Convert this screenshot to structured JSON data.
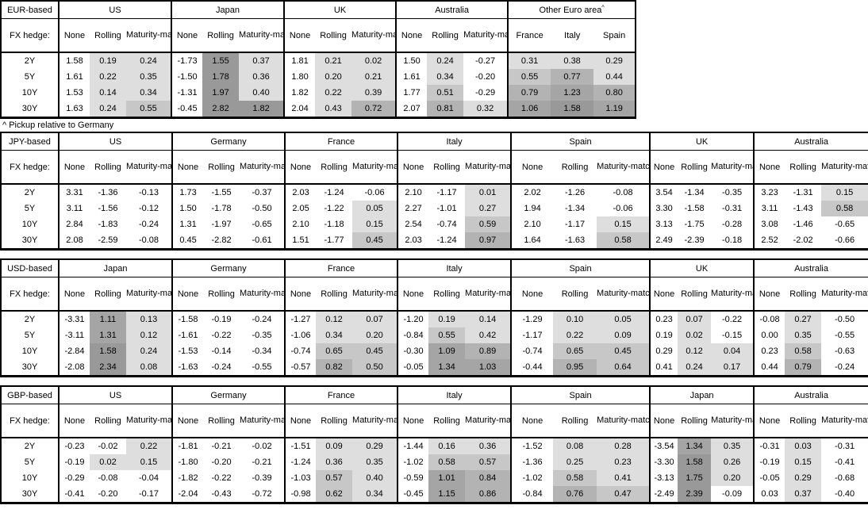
{
  "footnote": "^ Pickup relative to Germany",
  "labels": {
    "fx_hedge": "FX hedge:",
    "hedge_cols": [
      "None",
      "Rolling",
      "Maturity-matched"
    ],
    "tenors": [
      "2Y",
      "5Y",
      "10Y",
      "30Y"
    ]
  },
  "colors": {
    "border": "#000000",
    "shade_scale": [
      "#ffffff",
      "#dedede",
      "#c7c7c7",
      "#b3b3b3",
      "#a5a5a5",
      "#999999"
    ]
  },
  "tables": [
    {
      "base": "EUR-based",
      "groups": [
        {
          "name": "US",
          "rows": [
            [
              1.58,
              0.19,
              0.24
            ],
            [
              1.61,
              0.22,
              0.35
            ],
            [
              1.53,
              0.14,
              0.34
            ],
            [
              1.63,
              0.24,
              0.55
            ]
          ]
        },
        {
          "name": "Japan",
          "rows": [
            [
              -1.73,
              1.55,
              0.37
            ],
            [
              -1.5,
              1.78,
              0.36
            ],
            [
              -1.31,
              1.97,
              0.4
            ],
            [
              -0.45,
              2.82,
              1.82
            ]
          ]
        },
        {
          "name": "UK",
          "rows": [
            [
              1.81,
              0.21,
              0.02
            ],
            [
              1.8,
              0.2,
              0.21
            ],
            [
              1.82,
              0.22,
              0.39
            ],
            [
              2.04,
              0.43,
              0.72
            ]
          ]
        },
        {
          "name": "Australia",
          "rows": [
            [
              1.5,
              0.24,
              -0.27
            ],
            [
              1.61,
              0.34,
              -0.2
            ],
            [
              1.77,
              0.51,
              -0.29
            ],
            [
              2.07,
              0.81,
              0.32
            ]
          ]
        },
        {
          "name": "Other Euro area",
          "sup": "^",
          "cols": [
            "France",
            "Italy",
            "Spain"
          ],
          "rows": [
            [
              0.31,
              0.38,
              0.29
            ],
            [
              0.55,
              0.77,
              0.44
            ],
            [
              0.79,
              1.23,
              0.8
            ],
            [
              1.06,
              1.58,
              1.19
            ]
          ]
        }
      ]
    },
    {
      "base": "JPY-based",
      "groups": [
        {
          "name": "US",
          "rows": [
            [
              3.31,
              -1.36,
              -0.13
            ],
            [
              3.11,
              -1.56,
              -0.12
            ],
            [
              2.84,
              -1.83,
              -0.24
            ],
            [
              2.08,
              -2.59,
              -0.08
            ]
          ]
        },
        {
          "name": "Germany",
          "rows": [
            [
              1.73,
              -1.55,
              -0.37
            ],
            [
              1.5,
              -1.78,
              -0.5
            ],
            [
              1.31,
              -1.97,
              -0.65
            ],
            [
              0.45,
              -2.82,
              -0.61
            ]
          ]
        },
        {
          "name": "France",
          "rows": [
            [
              2.03,
              -1.24,
              -0.06
            ],
            [
              2.05,
              -1.22,
              0.05
            ],
            [
              2.1,
              -1.18,
              0.15
            ],
            [
              1.51,
              -1.77,
              0.45
            ]
          ]
        },
        {
          "name": "Italy",
          "rows": [
            [
              2.1,
              -1.17,
              0.01
            ],
            [
              2.27,
              -1.01,
              0.27
            ],
            [
              2.54,
              -0.74,
              0.59
            ],
            [
              2.03,
              -1.24,
              0.97
            ]
          ]
        },
        {
          "name": "Spain",
          "rows": [
            [
              2.02,
              -1.26,
              -0.08
            ],
            [
              1.94,
              -1.34,
              -0.06
            ],
            [
              2.1,
              -1.17,
              0.15
            ],
            [
              1.64,
              -1.63,
              0.58
            ]
          ]
        },
        {
          "name": "UK",
          "rows": [
            [
              3.54,
              -1.34,
              -0.35
            ],
            [
              3.3,
              -1.58,
              -0.31
            ],
            [
              3.13,
              -1.75,
              -0.28
            ],
            [
              2.49,
              -2.39,
              -0.18
            ]
          ]
        },
        {
          "name": "Australia",
          "rows": [
            [
              3.23,
              -1.31,
              0.15
            ],
            [
              3.11,
              -1.43,
              0.58
            ],
            [
              3.08,
              -1.46,
              -0.65
            ],
            [
              2.52,
              -2.02,
              -0.66
            ]
          ]
        }
      ]
    },
    {
      "base": "USD-based",
      "groups": [
        {
          "name": "Japan",
          "rows": [
            [
              -3.31,
              1.11,
              0.13
            ],
            [
              -3.11,
              1.31,
              0.12
            ],
            [
              -2.84,
              1.58,
              0.24
            ],
            [
              -2.08,
              2.34,
              0.08
            ]
          ]
        },
        {
          "name": "Germany",
          "rows": [
            [
              -1.58,
              -0.19,
              -0.24
            ],
            [
              -1.61,
              -0.22,
              -0.35
            ],
            [
              -1.53,
              -0.14,
              -0.34
            ],
            [
              -1.63,
              -0.24,
              -0.55
            ]
          ]
        },
        {
          "name": "France",
          "rows": [
            [
              -1.27,
              0.12,
              0.07
            ],
            [
              -1.06,
              0.34,
              0.2
            ],
            [
              -0.74,
              0.65,
              0.45
            ],
            [
              -0.57,
              0.82,
              0.5
            ]
          ]
        },
        {
          "name": "Italy",
          "rows": [
            [
              -1.2,
              0.19,
              0.14
            ],
            [
              -0.84,
              0.55,
              0.42
            ],
            [
              -0.3,
              1.09,
              0.89
            ],
            [
              -0.05,
              1.34,
              1.03
            ]
          ]
        },
        {
          "name": "Spain",
          "rows": [
            [
              -1.29,
              0.1,
              0.05
            ],
            [
              -1.17,
              0.22,
              0.09
            ],
            [
              -0.74,
              0.65,
              0.45
            ],
            [
              -0.44,
              0.95,
              0.64
            ]
          ]
        },
        {
          "name": "UK",
          "rows": [
            [
              0.23,
              0.07,
              -0.22
            ],
            [
              0.19,
              0.02,
              -0.15
            ],
            [
              0.29,
              0.12,
              0.04
            ],
            [
              0.41,
              0.24,
              0.17
            ]
          ]
        },
        {
          "name": "Australia",
          "rows": [
            [
              -0.08,
              0.27,
              -0.5
            ],
            [
              0.0,
              0.35,
              -0.55
            ],
            [
              0.23,
              0.58,
              -0.63
            ],
            [
              0.44,
              0.79,
              -0.24
            ]
          ]
        }
      ]
    },
    {
      "base": "GBP-based",
      "groups": [
        {
          "name": "US",
          "rows": [
            [
              -0.23,
              -0.02,
              0.22
            ],
            [
              -0.19,
              0.02,
              0.15
            ],
            [
              -0.29,
              -0.08,
              -0.04
            ],
            [
              -0.41,
              -0.2,
              -0.17
            ]
          ]
        },
        {
          "name": "Germany",
          "rows": [
            [
              -1.81,
              -0.21,
              -0.02
            ],
            [
              -1.8,
              -0.2,
              -0.21
            ],
            [
              -1.82,
              -0.22,
              -0.39
            ],
            [
              -2.04,
              -0.43,
              -0.72
            ]
          ]
        },
        {
          "name": "France",
          "rows": [
            [
              -1.51,
              0.09,
              0.29
            ],
            [
              -1.24,
              0.36,
              0.35
            ],
            [
              -1.03,
              0.57,
              0.4
            ],
            [
              -0.98,
              0.62,
              0.34
            ]
          ]
        },
        {
          "name": "Italy",
          "rows": [
            [
              -1.44,
              0.16,
              0.36
            ],
            [
              -1.02,
              0.58,
              0.57
            ],
            [
              -0.59,
              1.01,
              0.84
            ],
            [
              -0.45,
              1.15,
              0.86
            ]
          ]
        },
        {
          "name": "Spain",
          "rows": [
            [
              -1.52,
              0.08,
              0.28
            ],
            [
              -1.36,
              0.25,
              0.23
            ],
            [
              -1.02,
              0.58,
              0.41
            ],
            [
              -0.84,
              0.76,
              0.47
            ]
          ]
        },
        {
          "name": "Japan",
          "rows": [
            [
              -3.54,
              1.34,
              0.35
            ],
            [
              -3.3,
              1.58,
              0.26
            ],
            [
              -3.13,
              1.75,
              0.2
            ],
            [
              -2.49,
              2.39,
              -0.09
            ]
          ]
        },
        {
          "name": "Australia",
          "rows": [
            [
              -0.31,
              0.03,
              -0.31
            ],
            [
              -0.19,
              0.15,
              -0.41
            ],
            [
              -0.05,
              0.29,
              -0.68
            ],
            [
              0.03,
              0.37,
              -0.4
            ]
          ]
        }
      ]
    }
  ]
}
